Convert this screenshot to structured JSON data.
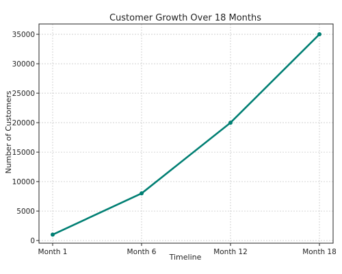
{
  "chart_data": {
    "type": "line",
    "title": "Customer Growth Over 18 Months",
    "xlabel": "Timeline",
    "ylabel": "Number of Customers",
    "categories": [
      "Month 1",
      "Month 6",
      "Month 12",
      "Month 18"
    ],
    "series": [
      {
        "values": [
          1000,
          8000,
          20000,
          35000
        ],
        "color": "#007f73"
      }
    ],
    "yticks": [
      0,
      5000,
      10000,
      15000,
      20000,
      25000,
      30000,
      35000
    ],
    "ylim": [
      -450,
      36750
    ],
    "grid": true,
    "markers": true
  }
}
